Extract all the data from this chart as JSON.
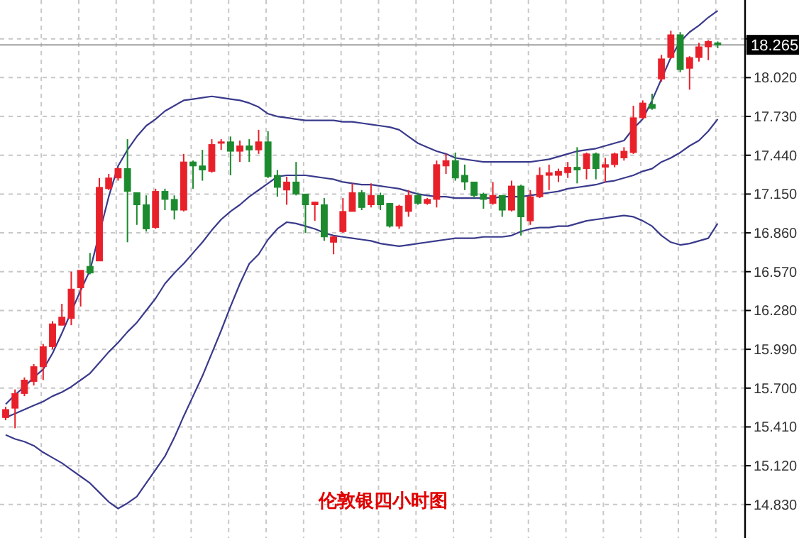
{
  "chart_data": {
    "type": "candlestick",
    "title": "伦敦银四小时图",
    "categories": [
      null,
      null,
      null,
      null,
      null,
      null,
      null,
      null,
      null,
      null,
      null,
      null,
      null,
      null,
      null,
      null,
      null,
      null,
      null,
      null,
      null,
      null,
      null,
      null,
      null,
      null,
      null,
      null,
      null,
      null,
      null,
      null,
      null,
      null,
      null,
      null,
      null,
      null,
      null,
      null,
      null,
      null,
      null,
      null,
      null,
      null,
      null,
      null,
      null,
      null,
      null,
      null,
      null,
      null,
      null,
      null,
      null,
      null,
      null,
      null,
      null,
      null,
      null,
      null,
      null,
      null,
      null,
      null,
      null,
      null,
      null,
      null,
      null,
      null,
      null,
      null,
      null
    ],
    "ohlc": [
      [
        15.48,
        15.56,
        15.46,
        15.54
      ],
      [
        15.55,
        15.69,
        15.4,
        15.66
      ],
      [
        15.66,
        15.78,
        15.64,
        15.76
      ],
      [
        15.75,
        15.88,
        15.72,
        15.86
      ],
      [
        15.86,
        16.03,
        15.76,
        16.01
      ],
      [
        16.01,
        16.2,
        15.99,
        16.18
      ],
      [
        16.17,
        16.33,
        16.17,
        16.23
      ],
      [
        16.22,
        16.57,
        16.17,
        16.44
      ],
      [
        16.45,
        16.58,
        16.31,
        16.58
      ],
      [
        16.61,
        16.71,
        16.55,
        16.56
      ],
      [
        16.65,
        17.27,
        16.65,
        17.2
      ],
      [
        17.19,
        17.3,
        17.18,
        17.27
      ],
      [
        17.27,
        17.35,
        17.25,
        17.34
      ],
      [
        17.34,
        17.56,
        16.79,
        17.17
      ],
      [
        17.16,
        17.16,
        16.92,
        17.07
      ],
      [
        17.07,
        17.14,
        16.87,
        16.89
      ],
      [
        16.9,
        17.19,
        16.89,
        17.17
      ],
      [
        17.17,
        17.19,
        17.03,
        17.11
      ],
      [
        17.11,
        17.14,
        16.96,
        17.03
      ],
      [
        17.03,
        17.45,
        17.02,
        17.39
      ],
      [
        17.39,
        17.4,
        17.19,
        17.36
      ],
      [
        17.36,
        17.48,
        17.25,
        17.33
      ],
      [
        17.32,
        17.56,
        17.31,
        17.52
      ],
      [
        17.53,
        17.56,
        17.48,
        17.54
      ],
      [
        17.54,
        17.58,
        17.29,
        17.47
      ],
      [
        17.47,
        17.55,
        17.39,
        17.51
      ],
      [
        17.51,
        17.56,
        17.39,
        17.48
      ],
      [
        17.48,
        17.63,
        17.45,
        17.54
      ],
      [
        17.54,
        17.62,
        17.27,
        17.28
      ],
      [
        17.29,
        17.33,
        17.13,
        17.2
      ],
      [
        17.18,
        17.28,
        17.07,
        17.24
      ],
      [
        17.24,
        17.39,
        17.14,
        17.15
      ],
      [
        17.15,
        17.15,
        16.86,
        17.07
      ],
      [
        17.07,
        17.09,
        16.95,
        17.09
      ],
      [
        17.07,
        17.12,
        16.8,
        16.83
      ],
      [
        16.79,
        16.84,
        16.7,
        16.83
      ],
      [
        16.87,
        17.12,
        16.86,
        17.02
      ],
      [
        17.02,
        17.23,
        17.02,
        17.16
      ],
      [
        17.16,
        17.18,
        17.03,
        17.05
      ],
      [
        17.07,
        17.23,
        17.05,
        17.14
      ],
      [
        17.14,
        17.16,
        17.03,
        17.07
      ],
      [
        17.08,
        17.08,
        16.9,
        16.91
      ],
      [
        16.91,
        17.07,
        16.89,
        17.06
      ],
      [
        17.02,
        17.18,
        16.98,
        17.14
      ],
      [
        17.14,
        17.16,
        17.07,
        17.08
      ],
      [
        17.08,
        17.12,
        17.07,
        17.11
      ],
      [
        17.11,
        17.4,
        17.05,
        17.37
      ],
      [
        17.36,
        17.45,
        17.3,
        17.4
      ],
      [
        17.4,
        17.46,
        17.25,
        17.27
      ],
      [
        17.29,
        17.37,
        17.18,
        17.24
      ],
      [
        17.24,
        17.24,
        17.12,
        17.14
      ],
      [
        17.15,
        17.16,
        17.04,
        17.11
      ],
      [
        17.08,
        17.24,
        17.07,
        17.14
      ],
      [
        17.14,
        17.14,
        16.98,
        17.03
      ],
      [
        17.03,
        17.25,
        17.02,
        17.21
      ],
      [
        17.21,
        17.22,
        16.84,
        16.98
      ],
      [
        16.95,
        17.18,
        16.92,
        17.13
      ],
      [
        17.13,
        17.35,
        17.12,
        17.29
      ],
      [
        17.29,
        17.37,
        17.18,
        17.31
      ],
      [
        17.29,
        17.34,
        17.24,
        17.32
      ],
      [
        17.31,
        17.39,
        17.27,
        17.35
      ],
      [
        17.35,
        17.5,
        17.23,
        17.33
      ],
      [
        17.34,
        17.46,
        17.26,
        17.45
      ],
      [
        17.45,
        17.46,
        17.26,
        17.34
      ],
      [
        17.35,
        17.42,
        17.24,
        17.37
      ],
      [
        17.37,
        17.46,
        17.35,
        17.45
      ],
      [
        17.42,
        17.5,
        17.4,
        17.47
      ],
      [
        17.46,
        17.81,
        17.45,
        17.72
      ],
      [
        17.72,
        17.85,
        17.71,
        17.83
      ],
      [
        17.82,
        17.9,
        17.78,
        17.79
      ],
      [
        18.01,
        18.19,
        17.99,
        18.16
      ],
      [
        18.17,
        18.37,
        18.16,
        18.34
      ],
      [
        18.34,
        18.36,
        18.06,
        18.08
      ],
      [
        18.09,
        18.18,
        17.93,
        18.17
      ],
      [
        18.17,
        18.28,
        18.14,
        18.25
      ],
      [
        18.25,
        18.3,
        18.15,
        18.29
      ],
      [
        18.28,
        18.29,
        18.24,
        18.265
      ]
    ],
    "colors": [
      "#e8202a",
      "#e8202a",
      "#e8202a",
      "#e8202a",
      "#e8202a",
      "#e8202a",
      "#e8202a",
      "#e8202a",
      "#e8202a",
      "#1c8a2e",
      "#e8202a",
      "#e8202a",
      "#e8202a",
      "#1c8a2e",
      "#1c8a2e",
      "#1c8a2e",
      "#e8202a",
      "#1c8a2e",
      "#1c8a2e",
      "#e8202a",
      "#1c8a2e",
      "#1c8a2e",
      "#e8202a",
      "#e8202a",
      "#1c8a2e",
      "#e8202a",
      "#1c8a2e",
      "#e8202a",
      "#1c8a2e",
      "#1c8a2e",
      "#e8202a",
      "#1c8a2e",
      "#1c8a2e",
      "#e8202a",
      "#1c8a2e",
      "#e8202a",
      "#e8202a",
      "#e8202a",
      "#1c8a2e",
      "#e8202a",
      "#1c8a2e",
      "#1c8a2e",
      "#e8202a",
      "#e8202a",
      "#1c8a2e",
      "#e8202a",
      "#e8202a",
      "#e8202a",
      "#1c8a2e",
      "#1c8a2e",
      "#1c8a2e",
      "#1c8a2e",
      "#e8202a",
      "#1c8a2e",
      "#e8202a",
      "#1c8a2e",
      "#e8202a",
      "#e8202a",
      "#e8202a",
      "#e8202a",
      "#e8202a",
      "#1c8a2e",
      "#e8202a",
      "#1c8a2e",
      "#e8202a",
      "#e8202a",
      "#e8202a",
      "#e8202a",
      "#e8202a",
      "#1c8a2e",
      "#e8202a",
      "#e8202a",
      "#1c8a2e",
      "#e8202a",
      "#e8202a",
      "#e8202a",
      "#1c8a2e"
    ],
    "series": [
      {
        "type": "line",
        "color": "#3a3a8c",
        "values": [
          15.58,
          15.65,
          15.71,
          15.78,
          15.84,
          15.96,
          16.11,
          null,
          16.43,
          16.58,
          null,
          17.13,
          17.36,
          17.48,
          17.58,
          17.66,
          17.71,
          17.77,
          17.81,
          17.85,
          17.86,
          17.87,
          17.88,
          17.87,
          17.86,
          17.85,
          17.83,
          17.8,
          17.75,
          17.73,
          17.72,
          17.71,
          17.7,
          17.7,
          17.7,
          17.7,
          17.69,
          17.69,
          17.68,
          17.67,
          17.66,
          17.65,
          17.63,
          17.58,
          17.53,
          17.5,
          17.47,
          17.45,
          17.42,
          17.41,
          17.4,
          17.39,
          17.39,
          17.39,
          17.39,
          17.39,
          17.39,
          17.4,
          17.41,
          17.43,
          17.45,
          17.47,
          17.48,
          17.49,
          17.51,
          17.53,
          17.55,
          17.64,
          17.71,
          17.85,
          18.01,
          18.17,
          18.29,
          18.36,
          18.41,
          18.47,
          18.52
        ]
      },
      {
        "type": "line",
        "color": "#3a3a8c",
        "values": [
          15.48,
          15.51,
          15.54,
          15.57,
          15.6,
          15.64,
          15.67,
          15.71,
          15.76,
          15.81,
          15.89,
          15.97,
          16.04,
          16.12,
          16.19,
          16.28,
          16.37,
          16.48,
          16.56,
          16.63,
          16.71,
          16.79,
          16.88,
          16.96,
          17.02,
          17.07,
          17.13,
          17.18,
          17.23,
          17.28,
          17.29,
          17.29,
          17.29,
          17.28,
          17.27,
          17.26,
          17.24,
          17.23,
          17.22,
          17.22,
          17.21,
          17.2,
          17.19,
          17.17,
          17.15,
          17.14,
          17.13,
          17.13,
          17.12,
          17.12,
          17.12,
          17.12,
          17.12,
          17.13,
          17.13,
          17.13,
          17.14,
          17.15,
          17.16,
          17.17,
          17.19,
          17.2,
          17.21,
          17.22,
          17.24,
          17.25,
          17.27,
          17.29,
          17.32,
          17.34,
          17.39,
          17.42,
          17.46,
          17.51,
          17.55,
          17.62,
          17.71
        ]
      },
      {
        "type": "line",
        "color": "#3a3a8c",
        "values": [
          15.35,
          15.32,
          15.3,
          15.27,
          15.22,
          15.18,
          15.14,
          15.09,
          15.04,
          14.99,
          14.92,
          14.85,
          14.8,
          14.84,
          14.89,
          14.99,
          15.09,
          15.19,
          15.33,
          15.49,
          15.64,
          15.79,
          15.96,
          16.13,
          16.31,
          16.48,
          16.63,
          16.7,
          16.81,
          16.89,
          16.94,
          16.93,
          16.91,
          16.89,
          16.86,
          16.84,
          16.83,
          16.82,
          16.81,
          16.8,
          16.78,
          16.77,
          16.76,
          16.77,
          16.78,
          16.79,
          16.8,
          16.81,
          16.82,
          16.82,
          16.82,
          16.83,
          16.83,
          16.83,
          16.84,
          16.87,
          16.89,
          16.9,
          16.9,
          16.91,
          16.91,
          16.93,
          16.95,
          16.96,
          16.97,
          16.98,
          16.99,
          16.98,
          16.95,
          16.91,
          16.84,
          16.79,
          16.77,
          16.78,
          16.8,
          16.82,
          16.93
        ]
      }
    ],
    "ylim": [
      14.58,
      18.6
    ],
    "yticks": [
      {
        "value": 14.83,
        "label": "14.830"
      },
      {
        "value": 15.12,
        "label": "15.120"
      },
      {
        "value": 15.41,
        "label": "15.410"
      },
      {
        "value": 15.7,
        "label": "15.700"
      },
      {
        "value": 15.99,
        "label": "15.990"
      },
      {
        "value": 16.28,
        "label": "16.280"
      },
      {
        "value": 16.57,
        "label": "16.570"
      },
      {
        "value": 16.86,
        "label": "16.860"
      },
      {
        "value": 17.15,
        "label": "17.150"
      },
      {
        "value": 17.44,
        "label": "17.440"
      },
      {
        "value": 17.73,
        "label": "17.730"
      },
      {
        "value": 18.02,
        "label": "18.020"
      },
      {
        "value": 18.31,
        "label": null
      }
    ],
    "ref_lines": [
      {
        "axis": "y",
        "value": 18.265,
        "label": "18.265",
        "color": "#a0a0a0"
      }
    ],
    "grid": true
  }
}
